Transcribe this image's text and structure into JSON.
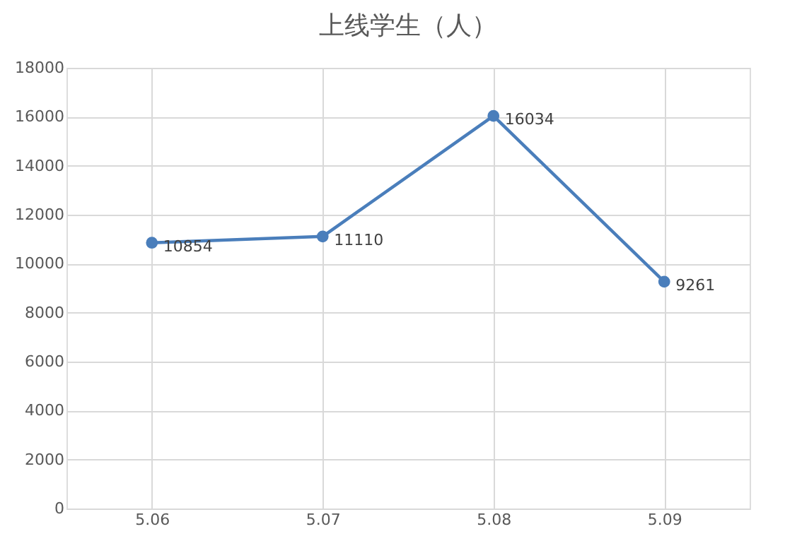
{
  "chart_data": {
    "type": "line",
    "title": "上线学生（人）",
    "categories": [
      "5.06",
      "5.07",
      "5.08",
      "5.09"
    ],
    "series": [
      {
        "color": "#4a7ebb",
        "values": [
          10854,
          11110,
          16034,
          9261
        ]
      }
    ],
    "ylim": [
      0,
      18000
    ],
    "yticks": [
      0,
      2000,
      4000,
      6000,
      8000,
      10000,
      12000,
      14000,
      16000,
      18000
    ],
    "grid": true,
    "marker": "circle",
    "line_style": "solid",
    "data_labels": true
  }
}
